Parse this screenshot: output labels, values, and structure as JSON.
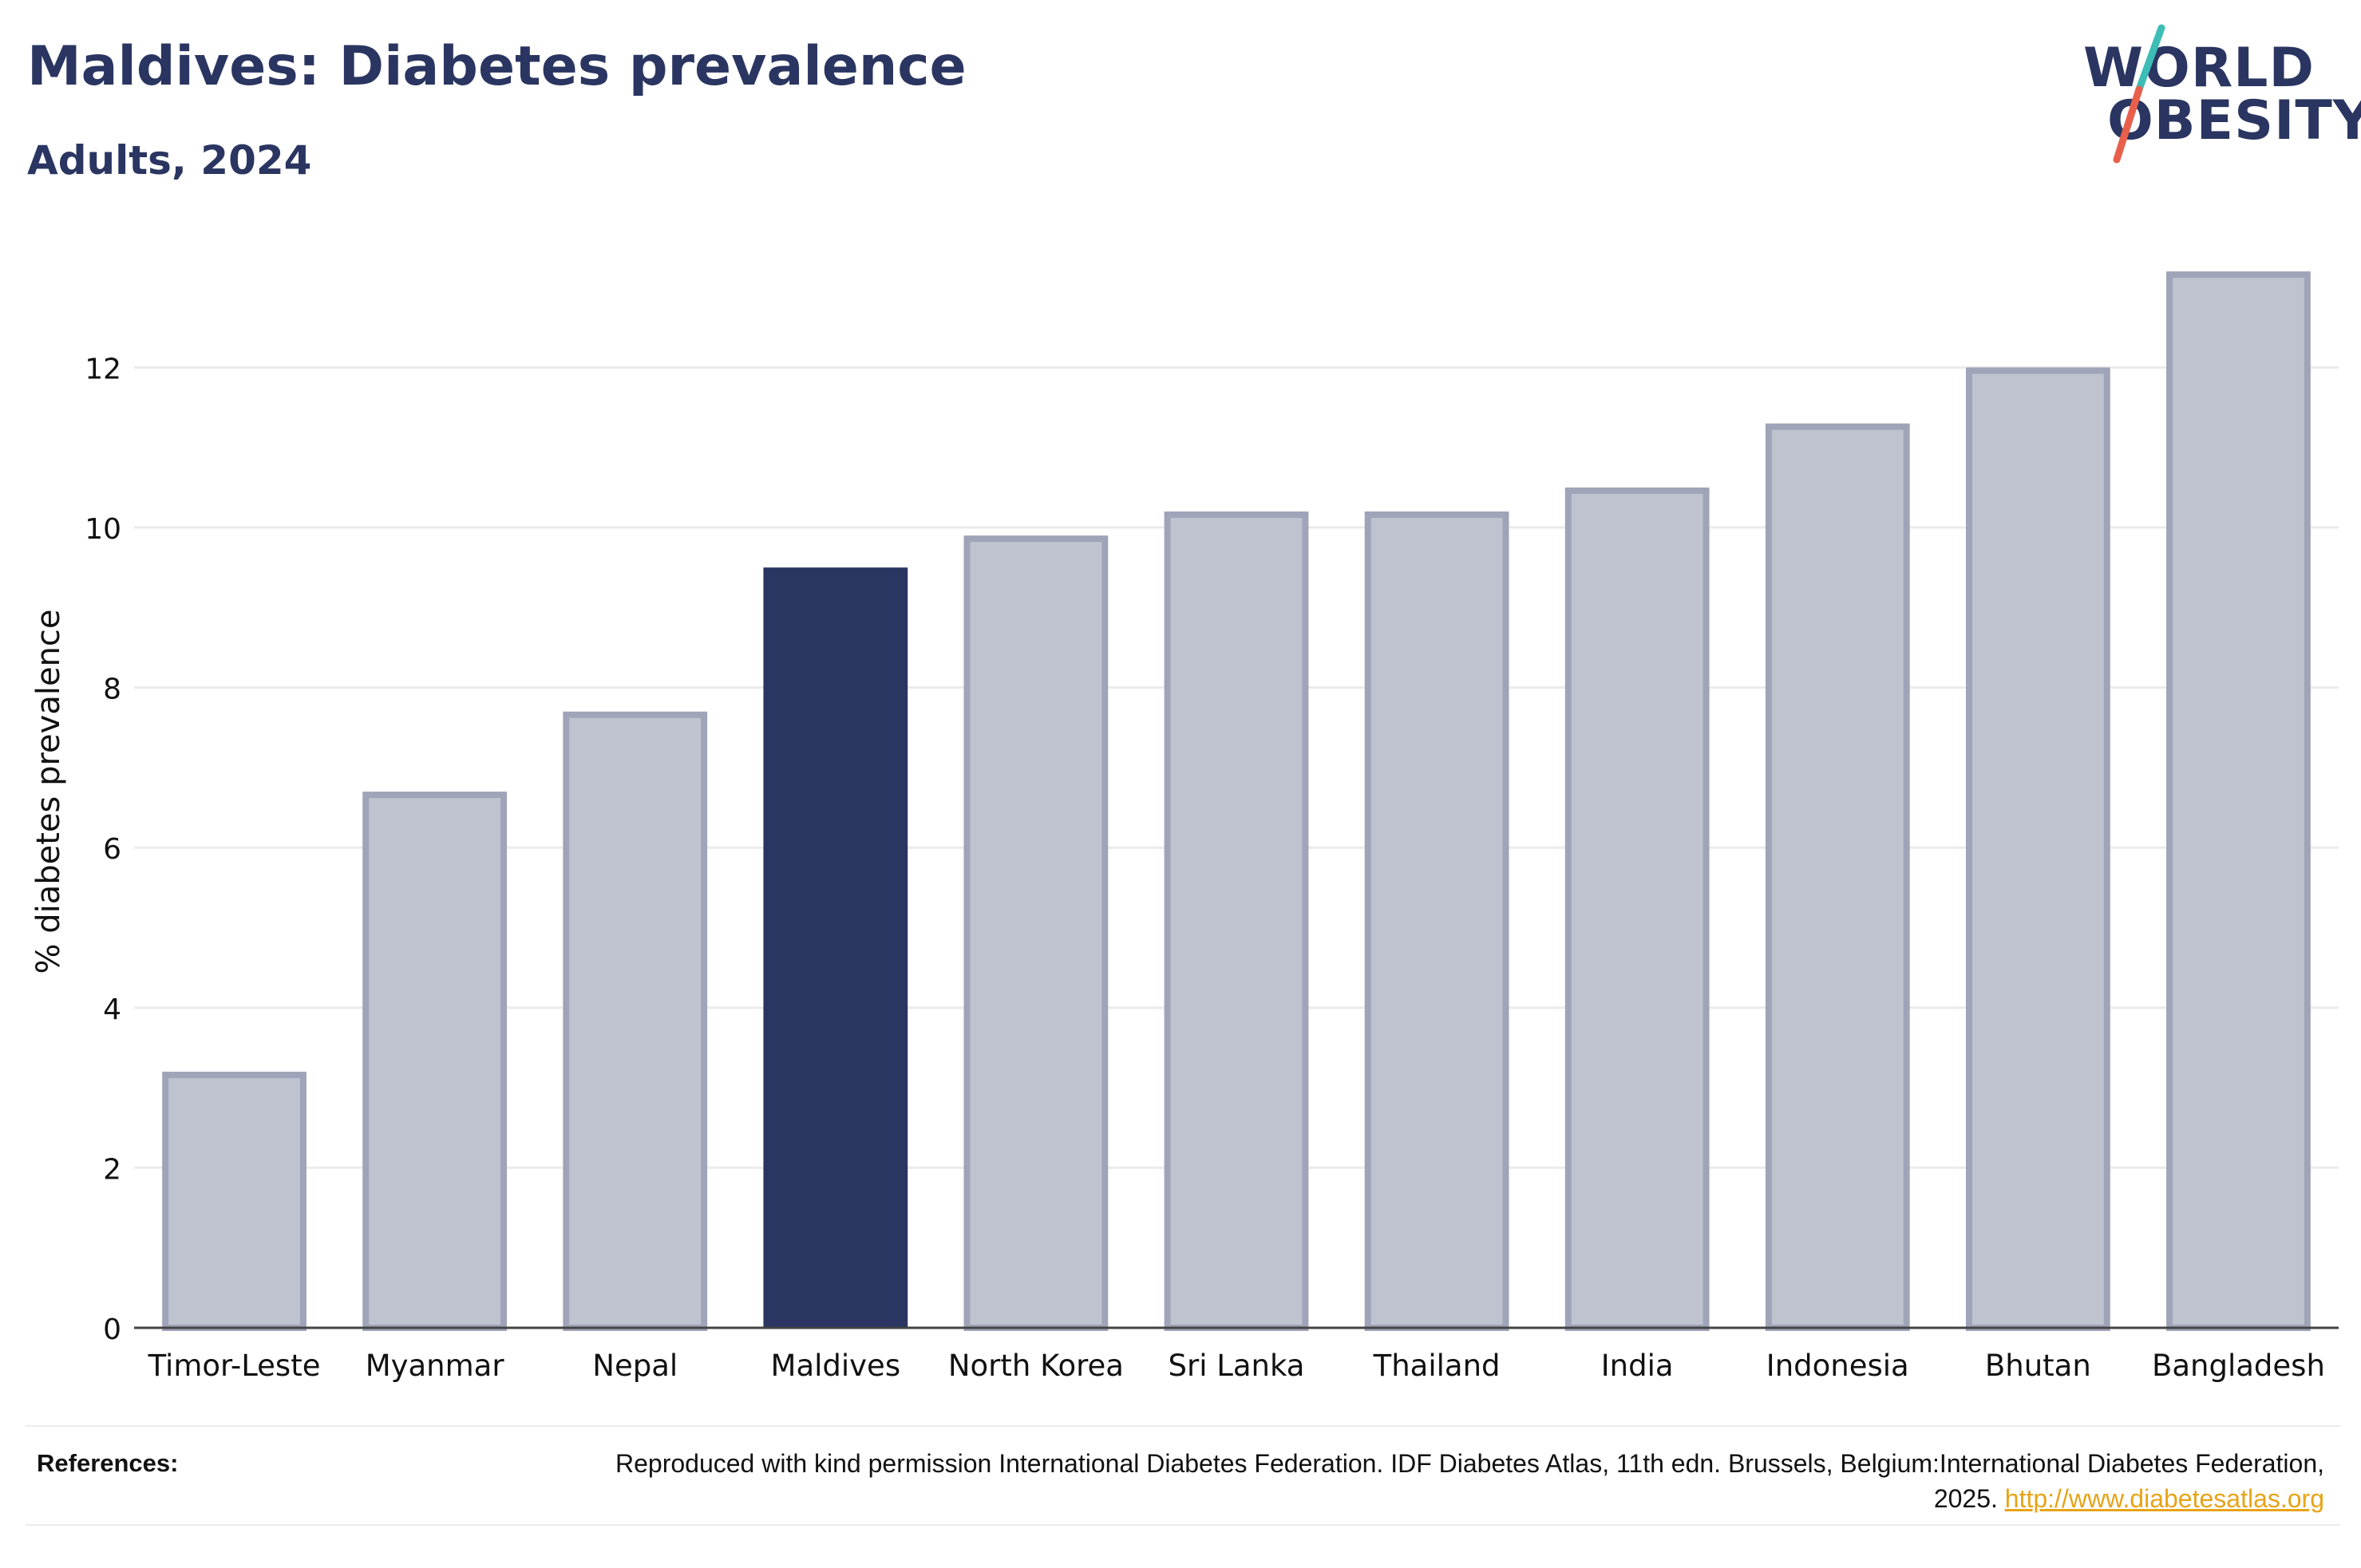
{
  "header": {
    "title": "Maldives: Diabetes prevalence",
    "subtitle": "Adults, 2024"
  },
  "logo": {
    "line1": "WORLD",
    "line2": "OBESITY",
    "text_color": "#2a3561",
    "slash_colors": [
      "#3dbdb6",
      "#e8604c"
    ]
  },
  "chart_data": {
    "type": "bar",
    "title": "Maldives: Diabetes prevalence",
    "subtitle": "Adults, 2024",
    "xlabel": "",
    "ylabel": "% diabetes prevalence",
    "ylim": [
      0,
      13.6
    ],
    "yticks": [
      0,
      2,
      4,
      6,
      8,
      10,
      12
    ],
    "grid": true,
    "categories": [
      "Timor-Leste",
      "Myanmar",
      "Nepal",
      "Maldives",
      "North Korea",
      "Sri Lanka",
      "Thailand",
      "India",
      "Indonesia",
      "Bhutan",
      "Bangladesh"
    ],
    "values": [
      3.2,
      6.7,
      7.7,
      9.5,
      9.9,
      10.2,
      10.2,
      10.5,
      11.3,
      12.0,
      13.2
    ],
    "highlight": "Maldives",
    "colors": {
      "highlight": "#2a3561",
      "bar_fill": "#bfc2cf",
      "bar_stroke": "#9fa4b8",
      "grid": "#ebebeb",
      "axis": "#444444"
    }
  },
  "footer": {
    "references_label": "References:",
    "references_text": "Reproduced with kind permission International Diabetes Federation. IDF Diabetes Atlas, 11th edn. Brussels, Belgium:International Diabetes Federation, 2025.",
    "link_text": "http://www.diabetesatlas.org",
    "link_color": "#e8a317"
  }
}
